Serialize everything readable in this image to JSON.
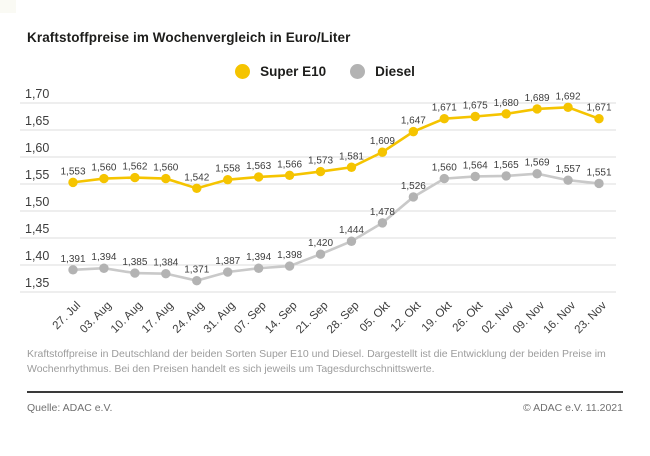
{
  "page": {
    "title": "Kraftstoffpreise im Wochenvergleich in Euro/Liter",
    "footnote_line1": "Kraftstoffpreise in Deutschland der beiden Sorten Super E10 und Diesel. Dargestellt ist die Entwicklung der beiden Preise im",
    "footnote_line2": "Wochenrhythmus. Bei den Preisen handelt es sich jeweils um Tagesdurchschnittswerte.",
    "source": "Quelle: ADAC e.V.",
    "copyright": "© ADAC e.V. 11.2021"
  },
  "colors": {
    "grid": "#dedede",
    "axis_text": "#3c3c3c",
    "value_text": "#3d3d3d",
    "super_e10": "#f5c400",
    "diesel_dot": "#b3b3b3",
    "diesel_line": "#c9c9c9"
  },
  "chart_data": {
    "type": "line",
    "title": "Kraftstoffpreise im Wochenvergleich in Euro/Liter",
    "unit": "Euro/Liter",
    "grid": true,
    "legend_position": "top-center",
    "value_labels": true,
    "decimal_separator": ",",
    "ylim": [
      1.35,
      1.7
    ],
    "yticks": [
      1.7,
      1.65,
      1.6,
      1.55,
      1.5,
      1.45,
      1.4,
      1.35
    ],
    "ytick_labels": [
      "1,70",
      "1,65",
      "1,60",
      "1,55",
      "1,50",
      "1,45",
      "1,40",
      "1,35"
    ],
    "categories": [
      "27. Jul",
      "03. Aug",
      "10. Aug",
      "17. Aug",
      "24. Aug",
      "31. Aug",
      "07. Sep",
      "14. Sep",
      "21. Sep",
      "28. Sep",
      "05. Okt",
      "12. Okt",
      "19. Okt",
      "26. Okt",
      "02. Nov",
      "09. Nov",
      "16. Nov",
      "23. Nov"
    ],
    "series": [
      {
        "name": "Super E10",
        "color": "#f5c400",
        "line_color": "#f5c400",
        "values": [
          1.553,
          1.56,
          1.562,
          1.56,
          1.542,
          1.558,
          1.563,
          1.566,
          1.573,
          1.581,
          1.609,
          1.647,
          1.671,
          1.675,
          1.68,
          1.689,
          1.692,
          1.671
        ]
      },
      {
        "name": "Diesel",
        "color": "#b3b3b3",
        "line_color": "#c9c9c9",
        "values": [
          1.391,
          1.394,
          1.385,
          1.384,
          1.371,
          1.387,
          1.394,
          1.398,
          1.42,
          1.444,
          1.478,
          1.526,
          1.56,
          1.564,
          1.565,
          1.569,
          1.557,
          1.551
        ]
      }
    ]
  }
}
